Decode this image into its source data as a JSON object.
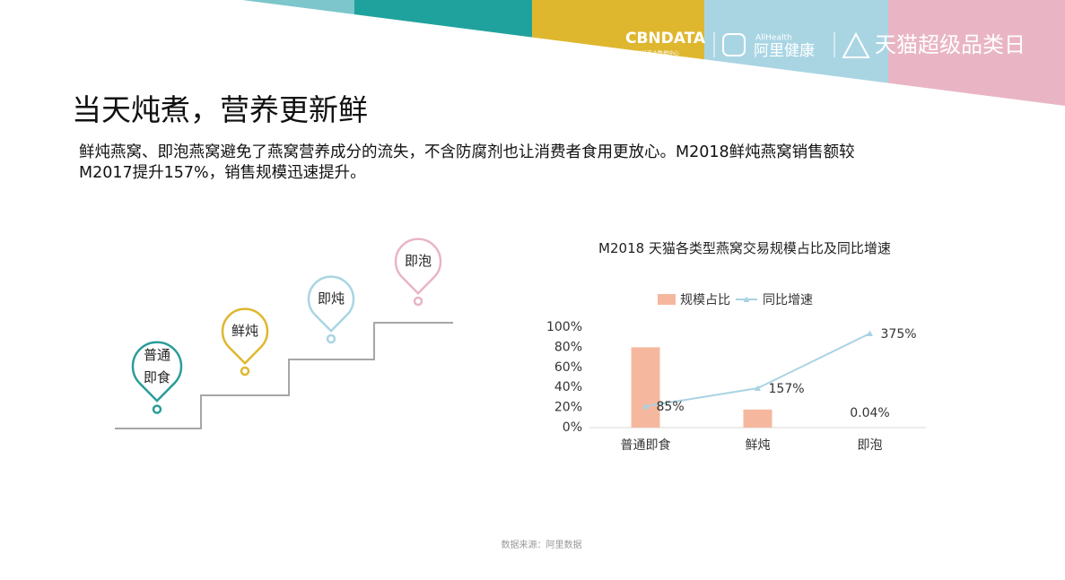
{
  "header": {
    "logo_main": "CBNDATA",
    "logo_sub": "第一财经商业数据中心",
    "partner_en": "AllHealth",
    "partner_cn": "阿里健康",
    "event": "天猫超级品类日"
  },
  "title": "当天炖煮，营养更新鲜",
  "body": [
    "鲜炖燕窝、即泡燕窝避免了燕窝营养成分的流失，不含防腐剂也让消费者食用更放心。M2018鲜炖燕窝销售额较",
    "M2017提升157%，销售规模迅速提升。"
  ],
  "steps": [
    "普通即食",
    "鲜炖",
    "即炖",
    "即泡"
  ],
  "chart_data": {
    "type": "bar_line",
    "title": "M2018 天猫各类型燕窝交易规模占比及同比增速",
    "categories": [
      "普通即食",
      "鲜炖",
      "即泡"
    ],
    "series": [
      {
        "name": "规模占比",
        "type": "bar",
        "color": "#f5b89f",
        "values": [
          80,
          18,
          0.04
        ],
        "value_labels": [
          null,
          null,
          "0.04%"
        ]
      },
      {
        "name": "同比增速",
        "type": "line",
        "color": "#a9d3e3",
        "axis": "y2",
        "values": [
          85,
          157,
          375
        ],
        "value_labels": [
          "85%",
          "157%",
          "375%"
        ]
      }
    ],
    "ylim": [
      0,
      100
    ],
    "yticks": [
      {
        "value": 0,
        "label": "0%"
      },
      {
        "value": 20,
        "label": "20%"
      },
      {
        "value": 40,
        "label": "40%"
      },
      {
        "value": 60,
        "label": "60%"
      },
      {
        "value": 80,
        "label": "80%"
      },
      {
        "value": 100,
        "label": "100%"
      }
    ],
    "y2lim": [
      0,
      400
    ],
    "legend": "top",
    "grid": false
  },
  "source": "数据来源：阿里数据"
}
